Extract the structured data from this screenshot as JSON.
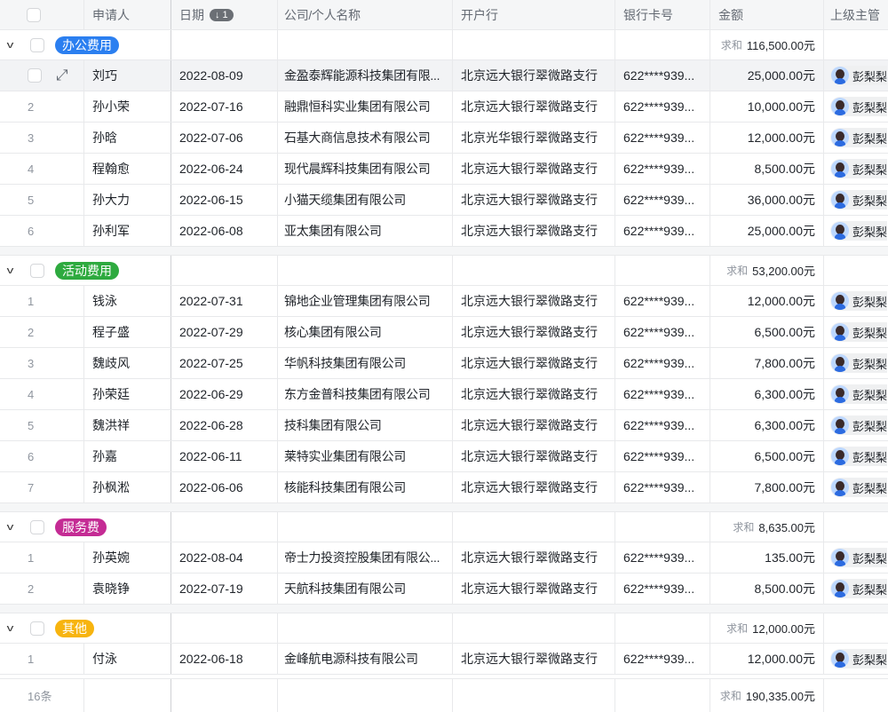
{
  "columns": [
    "申请人",
    "日期",
    "公司/个人名称",
    "开户行",
    "银行卡号",
    "金额",
    "上级主管"
  ],
  "sort_badge": "↓ 1",
  "sum_label": "求和",
  "groups": [
    {
      "name": "办公费用",
      "color": "#2b7ff0",
      "sum": "116,500.00元",
      "rows": [
        [
          "刘巧",
          "2022-08-09",
          "金盈泰辉能源科技集团有限...",
          "北京远大银行翠微路支行",
          "622****939...",
          "25,000.00元",
          "彭梨梨"
        ],
        [
          "孙小荣",
          "2022-07-16",
          "融鼎恒科实业集团有限公司",
          "北京远大银行翠微路支行",
          "622****939...",
          "10,000.00元",
          "彭梨梨"
        ],
        [
          "孙晗",
          "2022-07-06",
          "石基大商信息技术有限公司",
          "北京光华银行翠微路支行",
          "622****939...",
          "12,000.00元",
          "彭梨梨"
        ],
        [
          "程翰愈",
          "2022-06-24",
          "现代晨辉科技集团有限公司",
          "北京远大银行翠微路支行",
          "622****939...",
          "8,500.00元",
          "彭梨梨"
        ],
        [
          "孙大力",
          "2022-06-15",
          "小猫天缆集团有限公司",
          "北京远大银行翠微路支行",
          "622****939...",
          "36,000.00元",
          "彭梨梨"
        ],
        [
          "孙利军",
          "2022-06-08",
          "亚太集团有限公司",
          "北京远大银行翠微路支行",
          "622****939...",
          "25,000.00元",
          "彭梨梨"
        ]
      ]
    },
    {
      "name": "活动费用",
      "color": "#2eaa3f",
      "sum": "53,200.00元",
      "rows": [
        [
          "钱泳",
          "2022-07-31",
          "锦地企业管理集团有限公司",
          "北京远大银行翠微路支行",
          "622****939...",
          "12,000.00元",
          "彭梨梨"
        ],
        [
          "程子盛",
          "2022-07-29",
          "核心集团有限公司",
          "北京远大银行翠微路支行",
          "622****939...",
          "6,500.00元",
          "彭梨梨"
        ],
        [
          "魏歧风",
          "2022-07-25",
          "华帆科技集团有限公司",
          "北京远大银行翠微路支行",
          "622****939...",
          "7,800.00元",
          "彭梨梨"
        ],
        [
          "孙荣廷",
          "2022-06-29",
          "东方金普科技集团有限公司",
          "北京远大银行翠微路支行",
          "622****939...",
          "6,300.00元",
          "彭梨梨"
        ],
        [
          "魏洪祥",
          "2022-06-28",
          "技科集团有限公司",
          "北京远大银行翠微路支行",
          "622****939...",
          "6,300.00元",
          "彭梨梨"
        ],
        [
          "孙嘉",
          "2022-06-11",
          "莱特实业集团有限公司",
          "北京远大银行翠微路支行",
          "622****939...",
          "6,500.00元",
          "彭梨梨"
        ],
        [
          "孙枫淞",
          "2022-06-06",
          "核能科技集团有限公司",
          "北京远大银行翠微路支行",
          "622****939...",
          "7,800.00元",
          "彭梨梨"
        ]
      ]
    },
    {
      "name": "服务费",
      "color": "#c42b94",
      "sum": "8,635.00元",
      "rows": [
        [
          "孙英婉",
          "2022-08-04",
          "帝士力投资控股集团有限公...",
          "北京远大银行翠微路支行",
          "622****939...",
          "135.00元",
          "彭梨梨"
        ],
        [
          "袁晓铮",
          "2022-07-19",
          "天航科技集团有限公司",
          "北京远大银行翠微路支行",
          "622****939...",
          "8,500.00元",
          "彭梨梨"
        ]
      ]
    },
    {
      "name": "其他",
      "color": "#f7b40f",
      "sum": "12,000.00元",
      "rows": [
        [
          "付泳",
          "2022-06-18",
          "金峰航电源科技有限公司",
          "北京远大银行翠微路支行",
          "622****939...",
          "12,000.00元",
          "彭梨梨"
        ]
      ]
    }
  ],
  "footer": {
    "count": "16条",
    "sum": "190,335.00元"
  }
}
